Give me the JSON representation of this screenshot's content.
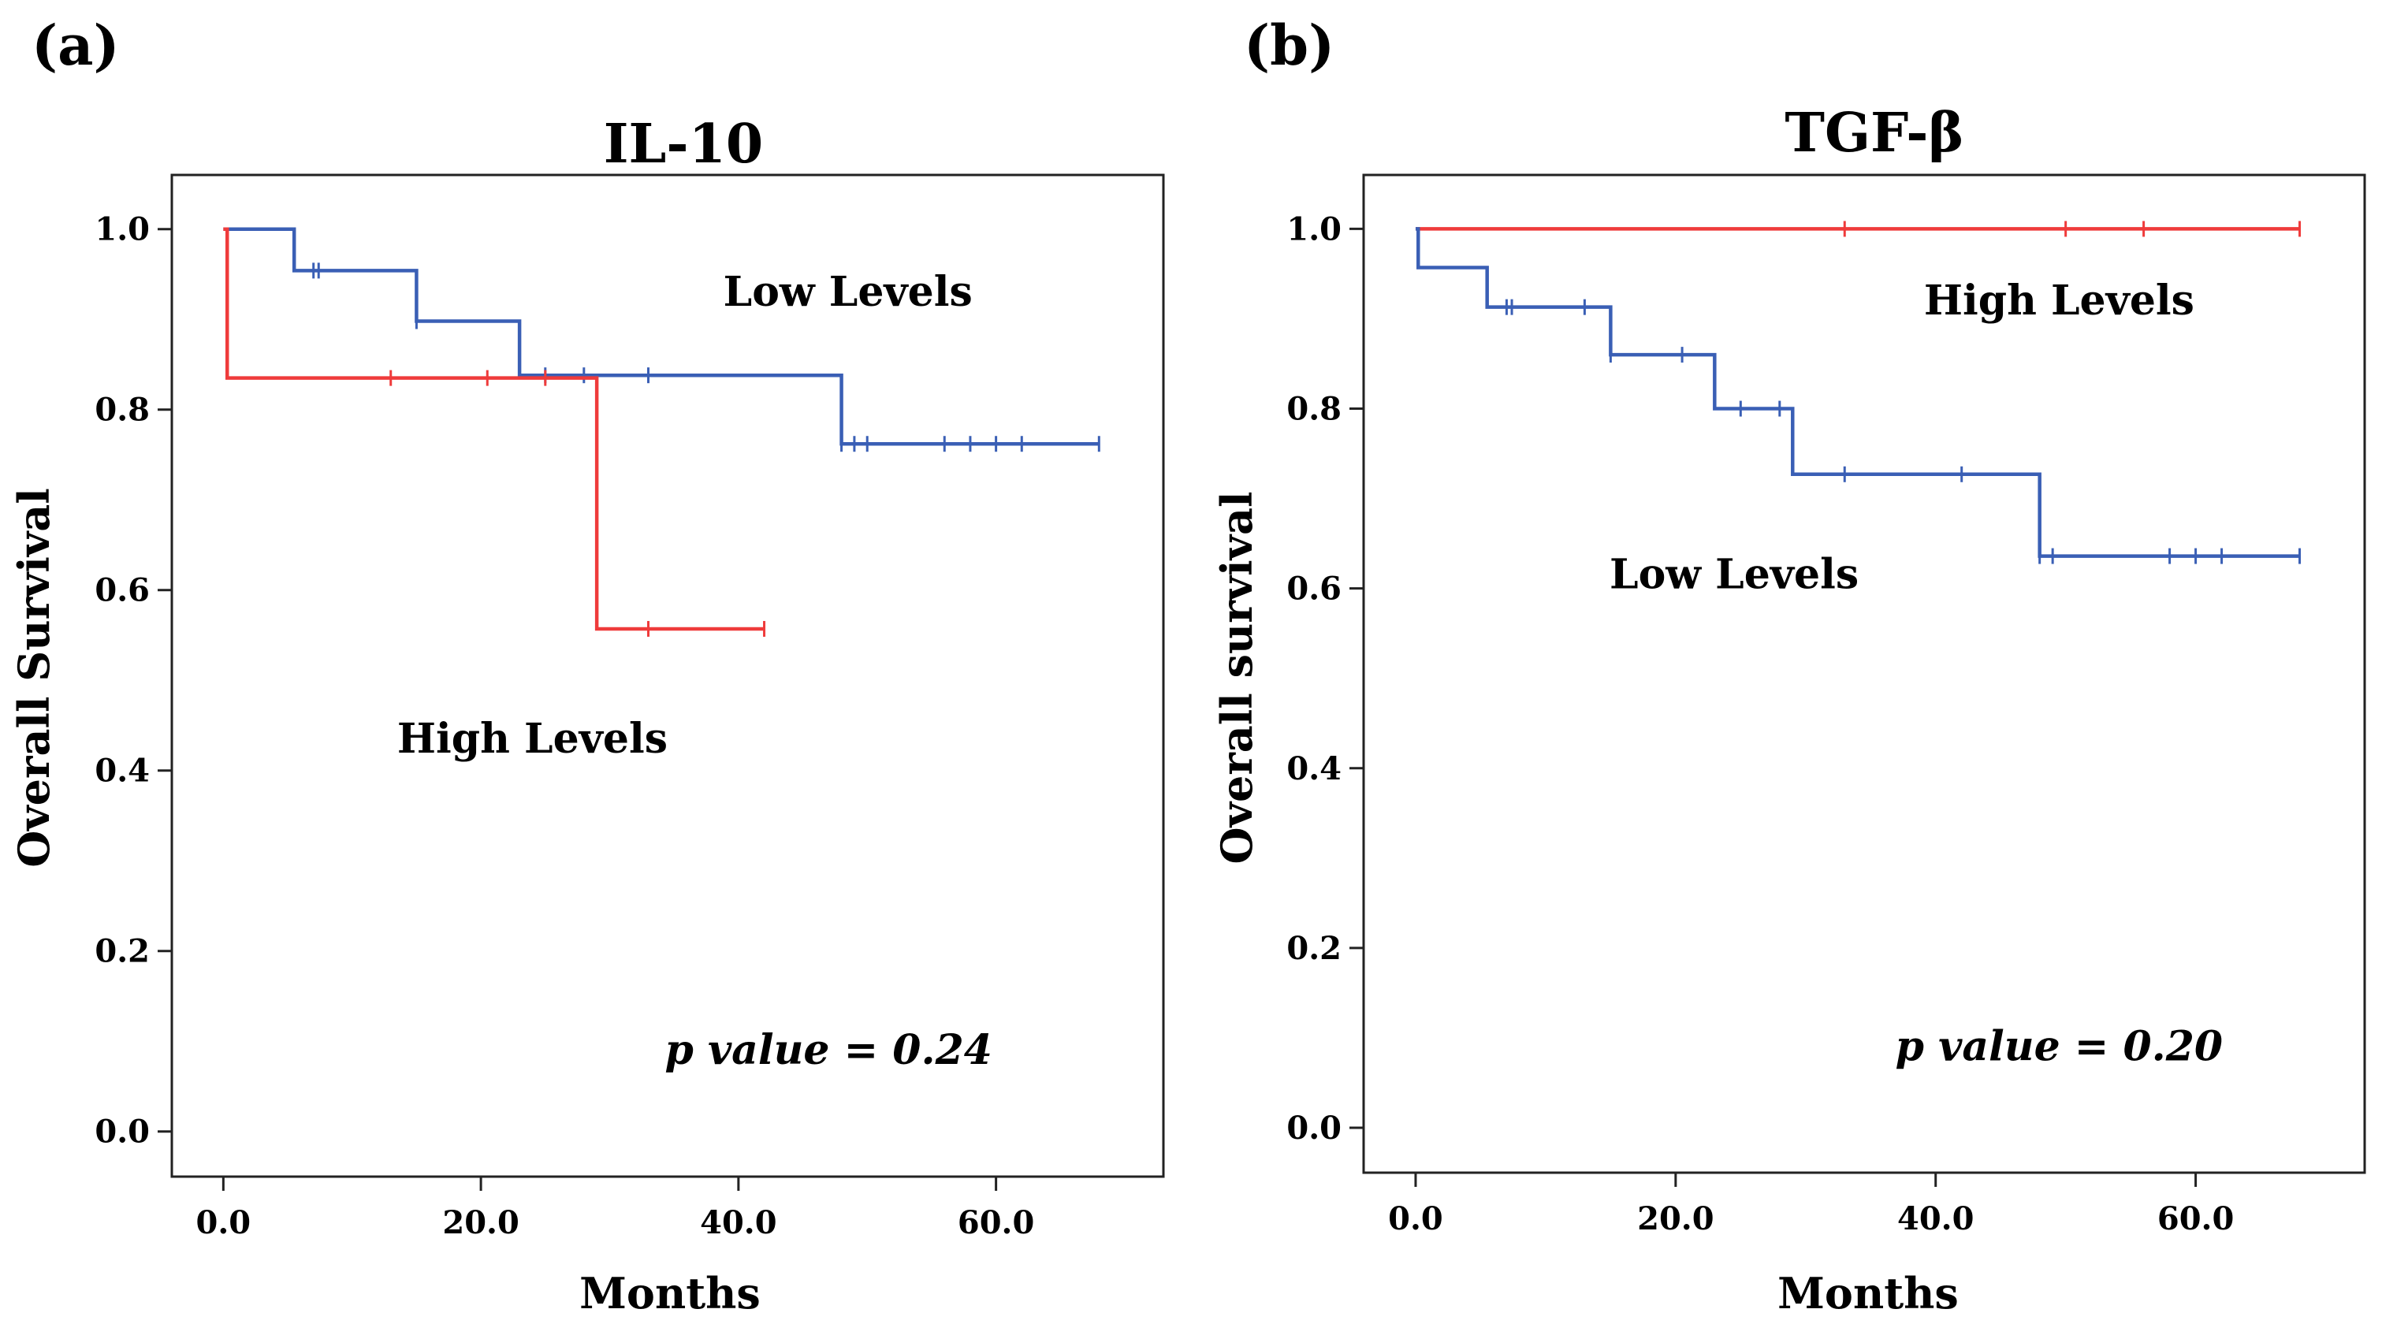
{
  "chart_data": [
    {
      "type": "line",
      "panel": "(a)",
      "title": "IL-10",
      "xlabel": "Months",
      "ylabel": "Overall Survival",
      "xlim": [
        -4,
        73
      ],
      "ylim": [
        -0.05,
        1.06
      ],
      "xticks": [
        0,
        20,
        40,
        60
      ],
      "xtick_labels": [
        "0.0",
        "20.0",
        "40.0",
        "60.0"
      ],
      "yticks": [
        0,
        0.2,
        0.4,
        0.6,
        0.8,
        1.0
      ],
      "ytick_labels": [
        "0.0",
        "0.2",
        "0.4",
        "0.6",
        "0.8",
        "1.0"
      ],
      "series": [
        {
          "name": "Low Levels",
          "color": "#3a5fb5",
          "steps": [
            [
              0,
              1.0
            ],
            [
              5.5,
              0.954
            ],
            [
              15,
              0.898
            ],
            [
              23,
              0.838
            ],
            [
              48,
              0.762
            ],
            [
              68,
              0.762
            ]
          ],
          "censors": [
            [
              7,
              0.954
            ],
            [
              7.4,
              0.954
            ],
            [
              15,
              0.898
            ],
            [
              25,
              0.838
            ],
            [
              28,
              0.838
            ],
            [
              33,
              0.838
            ],
            [
              48,
              0.762
            ],
            [
              49,
              0.762
            ],
            [
              50,
              0.762
            ],
            [
              56,
              0.762
            ],
            [
              58,
              0.762
            ],
            [
              60,
              0.762
            ],
            [
              62,
              0.762
            ],
            [
              68,
              0.762
            ]
          ]
        },
        {
          "name": "High Levels",
          "color": "#ef3b3b",
          "steps": [
            [
              0,
              1.0
            ],
            [
              0.3,
              0.835
            ],
            [
              29,
              0.557
            ],
            [
              42,
              0.557
            ]
          ],
          "censors": [
            [
              13,
              0.835
            ],
            [
              20.5,
              0.835
            ],
            [
              25,
              0.835
            ],
            [
              33,
              0.557
            ],
            [
              42,
              0.557
            ]
          ]
        }
      ],
      "annotations": [
        {
          "text": "Low Levels",
          "x": 48.5,
          "y": 0.915
        },
        {
          "text": "High Levels",
          "x": 24,
          "y": 0.42
        }
      ],
      "p_value_text": "p value = 0.24",
      "p_value_pos": [
        47,
        0.075
      ]
    },
    {
      "type": "line",
      "panel": "(b)",
      "title": "TGF-β",
      "xlabel": "Months",
      "ylabel": "Overall survival",
      "xlim": [
        -4,
        73
      ],
      "ylim": [
        -0.05,
        1.06
      ],
      "xticks": [
        0,
        20,
        40,
        60
      ],
      "xtick_labels": [
        "0.0",
        "20.0",
        "40.0",
        "60.0"
      ],
      "yticks": [
        0,
        0.2,
        0.4,
        0.6,
        0.8,
        1.0
      ],
      "ytick_labels": [
        "0.0",
        "0.2",
        "0.4",
        "0.6",
        "0.8",
        "1.0"
      ],
      "series": [
        {
          "name": "High Levels",
          "color": "#ef3b3b",
          "steps": [
            [
              0,
              1.0
            ],
            [
              68,
              1.0
            ]
          ],
          "censors": [
            [
              33,
              1.0
            ],
            [
              50,
              1.0
            ],
            [
              56,
              1.0
            ],
            [
              68,
              1.0
            ]
          ]
        },
        {
          "name": "Low Levels",
          "color": "#3a5fb5",
          "steps": [
            [
              0,
              1.0
            ],
            [
              0.2,
              0.957
            ],
            [
              5.5,
              0.913
            ],
            [
              15,
              0.86
            ],
            [
              23,
              0.8
            ],
            [
              29,
              0.727
            ],
            [
              48,
              0.636
            ],
            [
              68,
              0.636
            ]
          ],
          "censors": [
            [
              7,
              0.913
            ],
            [
              7.4,
              0.913
            ],
            [
              13,
              0.913
            ],
            [
              15,
              0.86
            ],
            [
              20.5,
              0.86
            ],
            [
              25,
              0.8
            ],
            [
              28,
              0.8
            ],
            [
              33,
              0.727
            ],
            [
              42,
              0.727
            ],
            [
              48,
              0.636
            ],
            [
              49,
              0.636
            ],
            [
              58,
              0.636
            ],
            [
              60,
              0.636
            ],
            [
              62,
              0.636
            ],
            [
              68,
              0.636
            ]
          ]
        }
      ],
      "annotations": [
        {
          "text": "High Levels",
          "x": 49.5,
          "y": 0.905
        },
        {
          "text": "Low Levels",
          "x": 24.5,
          "y": 0.6
        }
      ],
      "p_value_text": "p value = 0.20",
      "p_value_pos": [
        49.5,
        0.075
      ]
    }
  ]
}
